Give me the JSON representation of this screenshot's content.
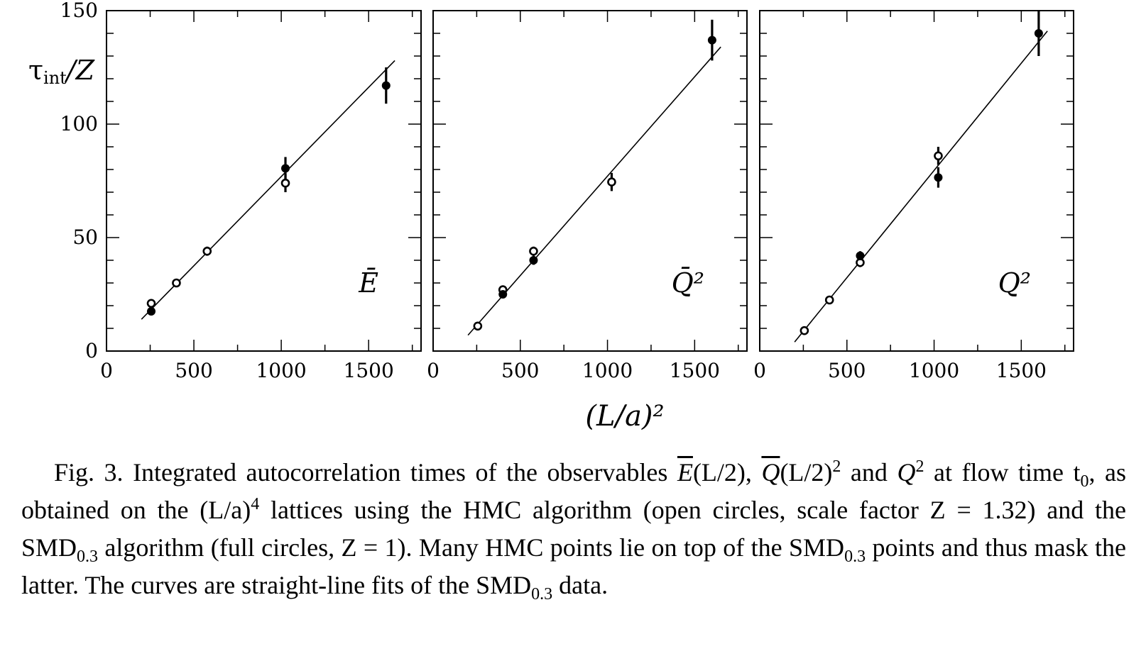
{
  "chart_data": [
    {
      "type": "scatter",
      "panel_label": "Ē",
      "ylabel": "τint/Z",
      "xlim": [
        0,
        1800
      ],
      "ylim": [
        0,
        150
      ],
      "x_ticks": [
        0,
        500,
        1000,
        1500
      ],
      "y_ticks": [
        0,
        50,
        100,
        150
      ],
      "series": [
        {
          "marker": "open-circle",
          "points": [
            {
              "x": 256,
              "y": 21,
              "err": 1.5
            },
            {
              "x": 400,
              "y": 30,
              "err": 1.5
            },
            {
              "x": 576,
              "y": 44,
              "err": 2
            },
            {
              "x": 1024,
              "y": 74,
              "err": 4
            }
          ]
        },
        {
          "marker": "filled-circle",
          "points": [
            {
              "x": 256,
              "y": 17.5,
              "err": 1.5
            },
            {
              "x": 1024,
              "y": 80.5,
              "err": 5
            },
            {
              "x": 1600,
              "y": 117,
              "err": 8
            }
          ]
        }
      ],
      "fit": {
        "x": [
          200,
          1650
        ],
        "y": [
          14,
          128
        ]
      }
    },
    {
      "type": "scatter",
      "panel_label": "Q̄²",
      "xlim": [
        0,
        1800
      ],
      "ylim": [
        0,
        150
      ],
      "x_ticks": [
        0,
        500,
        1000,
        1500
      ],
      "series": [
        {
          "marker": "open-circle",
          "points": [
            {
              "x": 256,
              "y": 11,
              "err": 1
            },
            {
              "x": 400,
              "y": 27,
              "err": 1.5
            },
            {
              "x": 576,
              "y": 44,
              "err": 2
            },
            {
              "x": 1024,
              "y": 74.5,
              "err": 4
            }
          ]
        },
        {
          "marker": "filled-circle",
          "points": [
            {
              "x": 400,
              "y": 25,
              "err": 1.5
            },
            {
              "x": 576,
              "y": 40,
              "err": 2
            },
            {
              "x": 1600,
              "y": 137,
              "err": 9
            }
          ]
        }
      ],
      "fit": {
        "x": [
          200,
          1650
        ],
        "y": [
          7,
          134
        ]
      }
    },
    {
      "type": "scatter",
      "panel_label": "Q²",
      "xlim": [
        0,
        1800
      ],
      "ylim": [
        0,
        150
      ],
      "x_ticks": [
        0,
        500,
        1000,
        1500
      ],
      "series": [
        {
          "marker": "open-circle",
          "points": [
            {
              "x": 256,
              "y": 9,
              "err": 1
            },
            {
              "x": 400,
              "y": 22.5,
              "err": 1.5
            },
            {
              "x": 576,
              "y": 39,
              "err": 2
            },
            {
              "x": 1024,
              "y": 86,
              "err": 4
            }
          ]
        },
        {
          "marker": "filled-circle",
          "points": [
            {
              "x": 576,
              "y": 42,
              "err": 2
            },
            {
              "x": 1024,
              "y": 76.5,
              "err": 4.5
            },
            {
              "x": 1600,
              "y": 140,
              "err": 10
            }
          ]
        }
      ],
      "fit": {
        "x": [
          200,
          1650
        ],
        "y": [
          4,
          141
        ]
      }
    }
  ],
  "axis": {
    "xlabel": "(L/a)²",
    "ylabel_main": "τ",
    "ylabel_sub": "int",
    "ylabel_tail": "/Z"
  },
  "caption": {
    "line1": "Fig. 3.  Integrated autocorrelation times of the observables ",
    "e_sym": "E",
    "e_arg": "(L/2), ",
    "q_sym": "Q",
    "q_arg": "(L/2)",
    "q_pow": "2",
    "and": " and ",
    "q2_sym": "Q",
    "q2_pow": "2",
    "text2": " at flow time t",
    "t_sub": "0",
    "text3": ", as obtained on the (L/a)",
    "lat_pow": "4",
    "text4": " lattices using the HMC algorithm (open circles, scale factor Z = 1.32) and the SMD",
    "smd_sub1": "0.3",
    "text5": " algorithm (full circles, Z = 1).  Many HMC points lie on top of the SMD",
    "smd_sub2": "0.3",
    "text6": " points and thus mask the latter.  The curves are straight-line fits of the SMD",
    "smd_sub3": "0.3",
    "text7": " data."
  }
}
